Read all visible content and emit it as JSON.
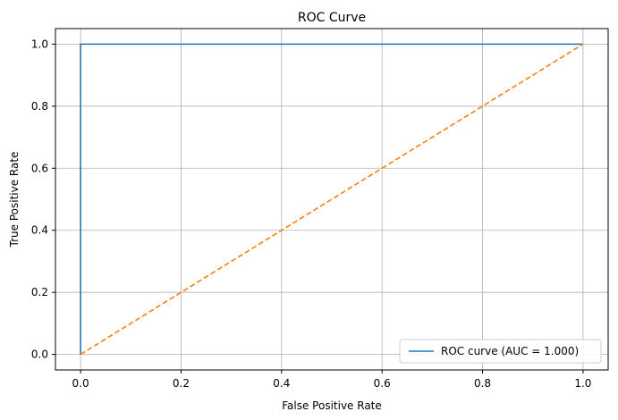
{
  "chart_data": {
    "type": "line",
    "title": "ROC Curve",
    "xlabel": "False Positive Rate",
    "ylabel": "True Positive Rate",
    "xlim": [
      -0.05,
      1.05
    ],
    "ylim": [
      -0.05,
      1.05
    ],
    "xticks": [
      0.0,
      0.2,
      0.4,
      0.6,
      0.8,
      1.0
    ],
    "xtick_labels": [
      "0.0",
      "0.2",
      "0.4",
      "0.6",
      "0.8",
      "1.0"
    ],
    "yticks": [
      0.0,
      0.2,
      0.4,
      0.6,
      0.8,
      1.0
    ],
    "ytick_labels": [
      "0.0",
      "0.2",
      "0.4",
      "0.6",
      "0.8",
      "1.0"
    ],
    "grid": true,
    "legend_position": "bottom-right",
    "series": [
      {
        "name": "ROC curve (AUC = 1.000)",
        "color": "#1f77b4",
        "style": "solid",
        "x": [
          0.0,
          0.0,
          1.0
        ],
        "y": [
          0.0,
          1.0,
          1.0
        ]
      },
      {
        "color": "#ff7f0e",
        "style": "dashed",
        "x": [
          0.0,
          1.0
        ],
        "y": [
          0.0,
          1.0
        ]
      }
    ]
  }
}
